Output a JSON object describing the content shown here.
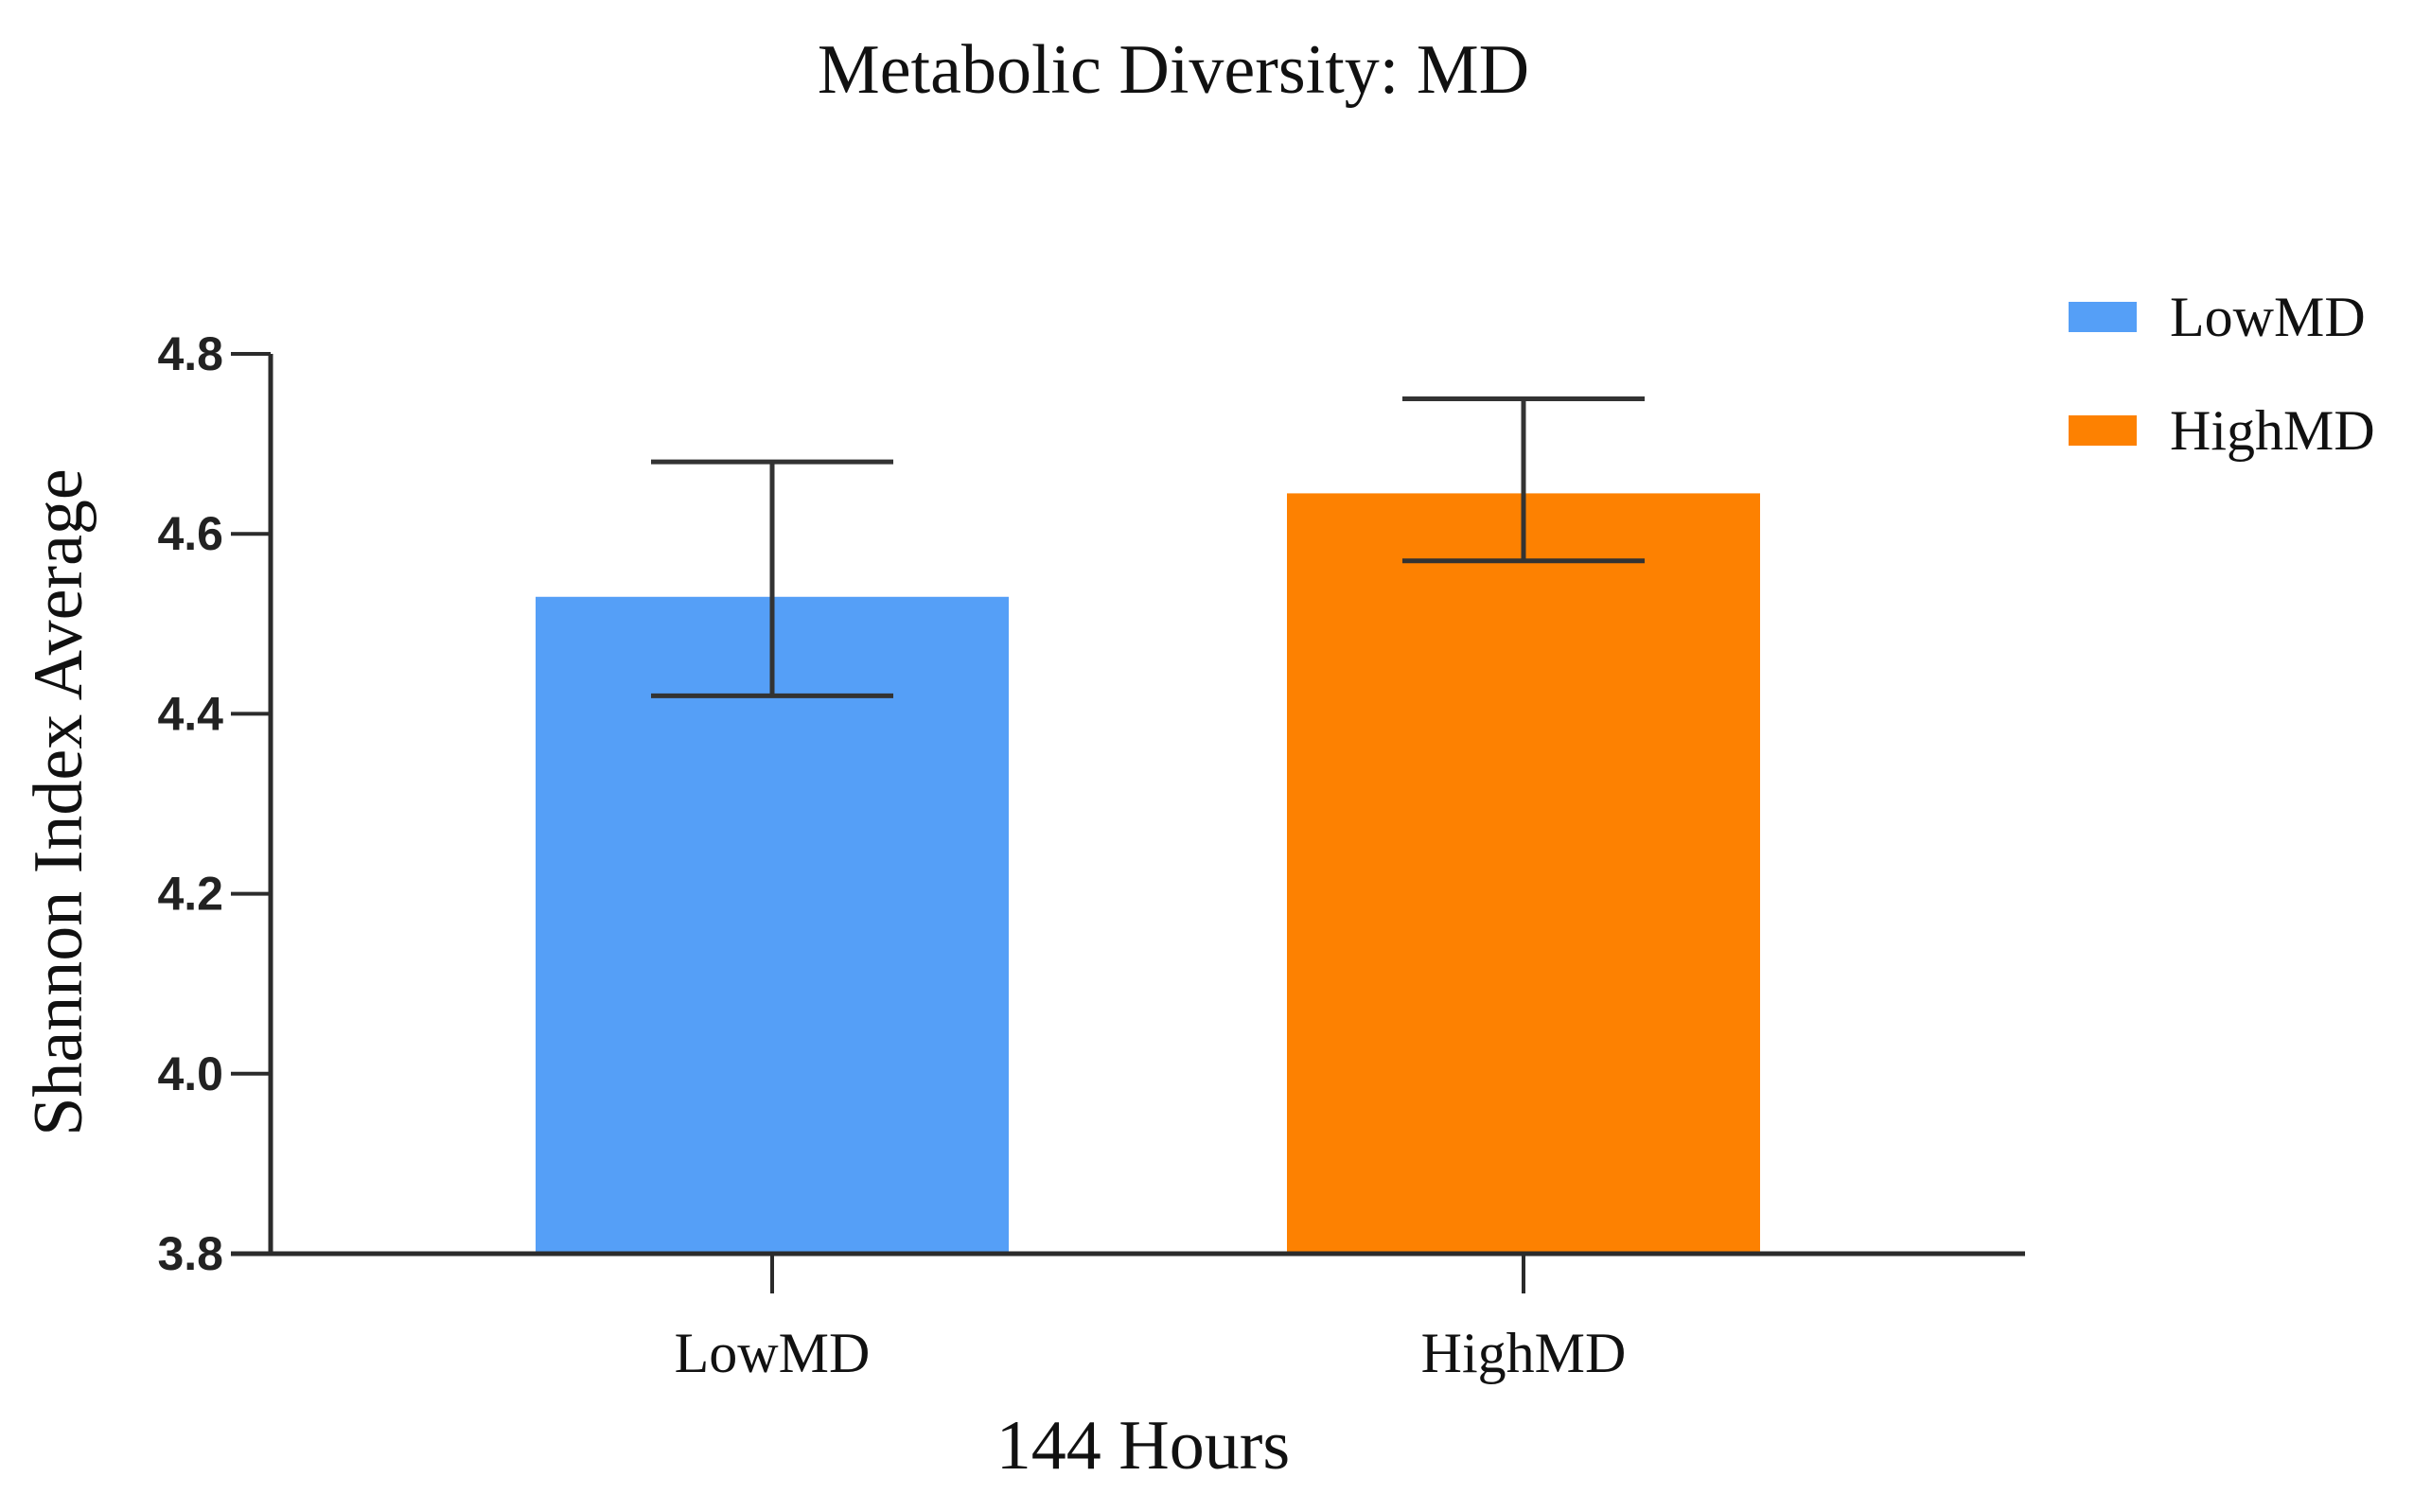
{
  "chart_data": {
    "type": "bar",
    "title": "Metabolic Diversity: MD",
    "xlabel": "144 Hours",
    "ylabel": "Shannon Index Average",
    "categories": [
      "LowMD",
      "HighMD"
    ],
    "values": [
      4.53,
      4.645
    ],
    "error_low": [
      4.42,
      4.57
    ],
    "error_high": [
      4.68,
      4.75
    ],
    "colors": [
      "#559ff7",
      "#fd8101"
    ],
    "ylim": [
      3.8,
      4.8
    ],
    "yticks": [
      "3.8",
      "4.0",
      "4.2",
      "4.4",
      "4.6",
      "4.8"
    ],
    "legend": {
      "placement": "top-right",
      "entries": [
        {
          "label": "LowMD",
          "color": "#559ff7"
        },
        {
          "label": "HighMD",
          "color": "#fd8101"
        }
      ]
    },
    "grid": false
  }
}
